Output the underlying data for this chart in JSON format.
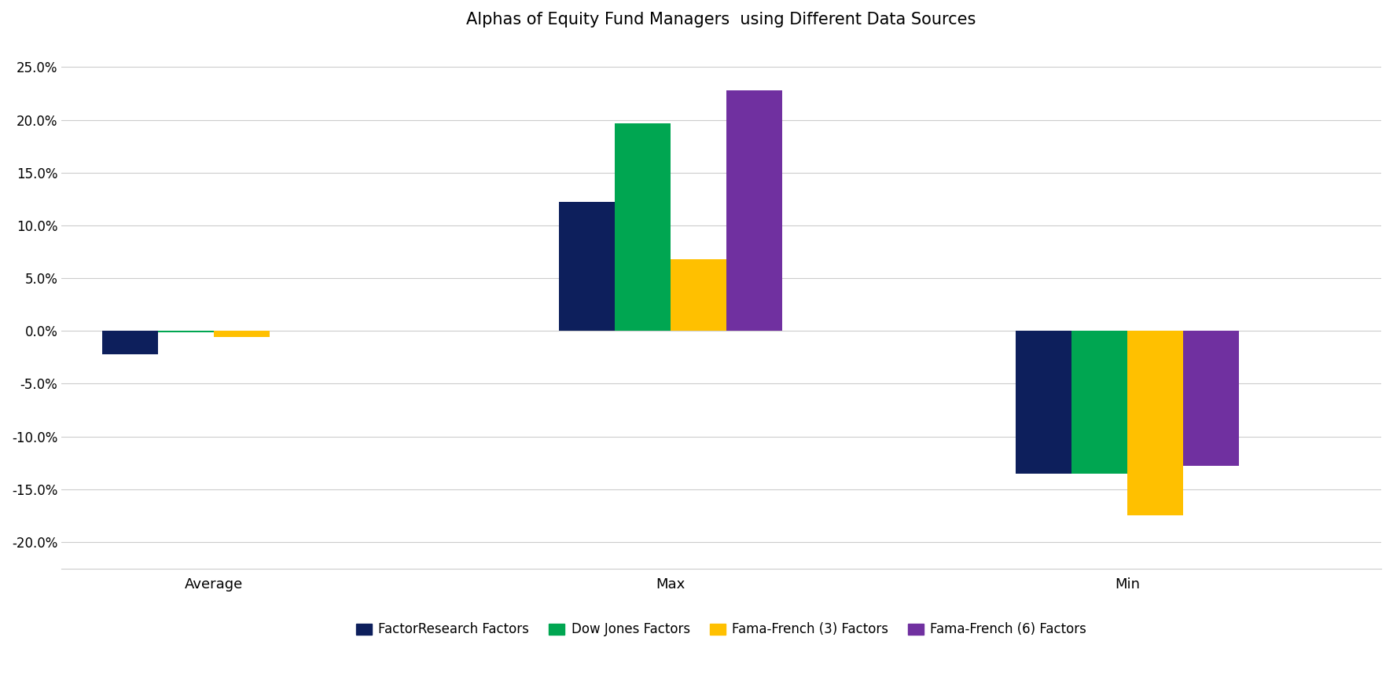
{
  "title": "Alphas of Equity Fund Managers  using Different Data Sources",
  "categories": [
    "Average",
    "Max",
    "Min"
  ],
  "series": {
    "FactorResearch Factors": {
      "values": [
        -0.022,
        0.122,
        -0.135
      ],
      "color": "#0d1f5c"
    },
    "Dow Jones Factors": {
      "values": [
        -0.001,
        0.197,
        -0.135
      ],
      "color": "#00a651"
    },
    "Fama-French (3) Factors": {
      "values": [
        -0.006,
        0.068,
        -0.175
      ],
      "color": "#ffc000"
    },
    "Fama-French (6) Factors": {
      "values": [
        0.0,
        0.228,
        -0.128
      ],
      "color": "#7030a0"
    }
  },
  "ylim": [
    -0.225,
    0.275
  ],
  "yticks": [
    -0.2,
    -0.15,
    -0.1,
    -0.05,
    0.0,
    0.05,
    0.1,
    0.15,
    0.2,
    0.25
  ],
  "bar_width": 0.55,
  "group_positions": [
    0,
    4.5,
    9.0
  ],
  "xlim": [
    -1.5,
    11.5
  ],
  "legend_ncol": 4
}
